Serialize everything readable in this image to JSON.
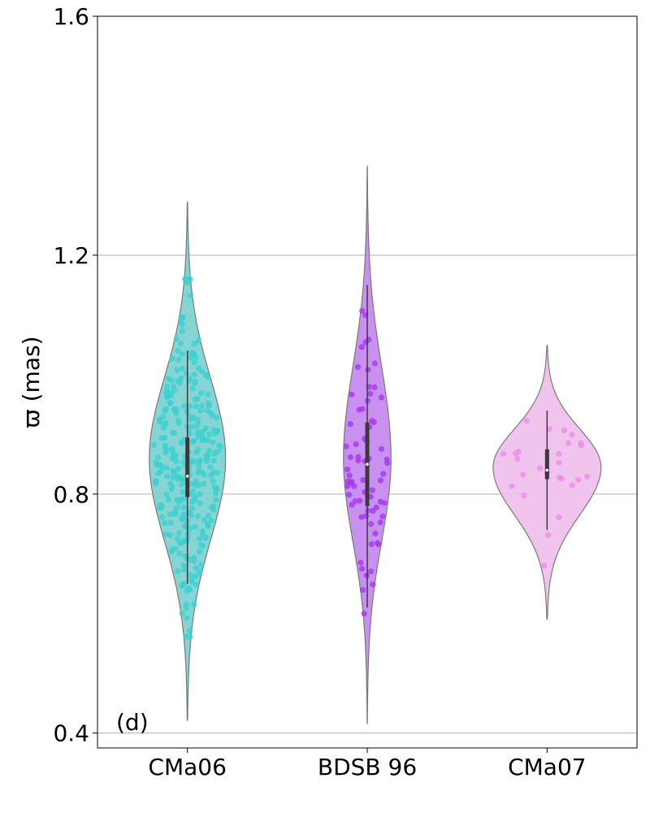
{
  "chart_data": {
    "type": "violin",
    "ylabel": "ϖ (mas)",
    "xlabel": "",
    "ylim": [
      0.375,
      1.6
    ],
    "yticks": [
      "0.4",
      "0.8",
      "1.2",
      "1.6"
    ],
    "grid": "horizontal",
    "panel_label": "(d)",
    "categories": [
      "CMa06",
      "BDSB 96",
      "CMa07"
    ],
    "series": [
      {
        "category": "CMa06",
        "color": "#40cfcf",
        "violin_color": "#7fd3d3",
        "violin_min": 0.42,
        "violin_max": 1.29,
        "mode": 0.86,
        "width_scale": 0.53,
        "median": 0.83,
        "q1": 0.795,
        "q3": 0.895,
        "whisker_low": 0.65,
        "whisker_high": 1.04,
        "n_points": 320,
        "points_range": [
          0.54,
          1.16
        ]
      },
      {
        "category": "BDSB 96",
        "color": "#a637f0",
        "violin_color": "#c58bef",
        "violin_min": 0.415,
        "violin_max": 1.35,
        "mode": 0.86,
        "width_scale": 0.33,
        "median": 0.85,
        "q1": 0.78,
        "q3": 0.92,
        "whisker_low": 0.61,
        "whisker_high": 1.15,
        "n_points": 70,
        "points_range": [
          0.6,
          1.17
        ]
      },
      {
        "category": "CMa07",
        "color": "#ee8de8",
        "violin_color": "#f0c1ed",
        "violin_min": 0.59,
        "violin_max": 1.05,
        "mode": 0.845,
        "width_scale": 0.75,
        "median": 0.84,
        "q1": 0.825,
        "q3": 0.875,
        "whisker_low": 0.74,
        "whisker_high": 0.94,
        "n_points": 26,
        "points_range": [
          0.68,
          0.96
        ]
      }
    ]
  }
}
